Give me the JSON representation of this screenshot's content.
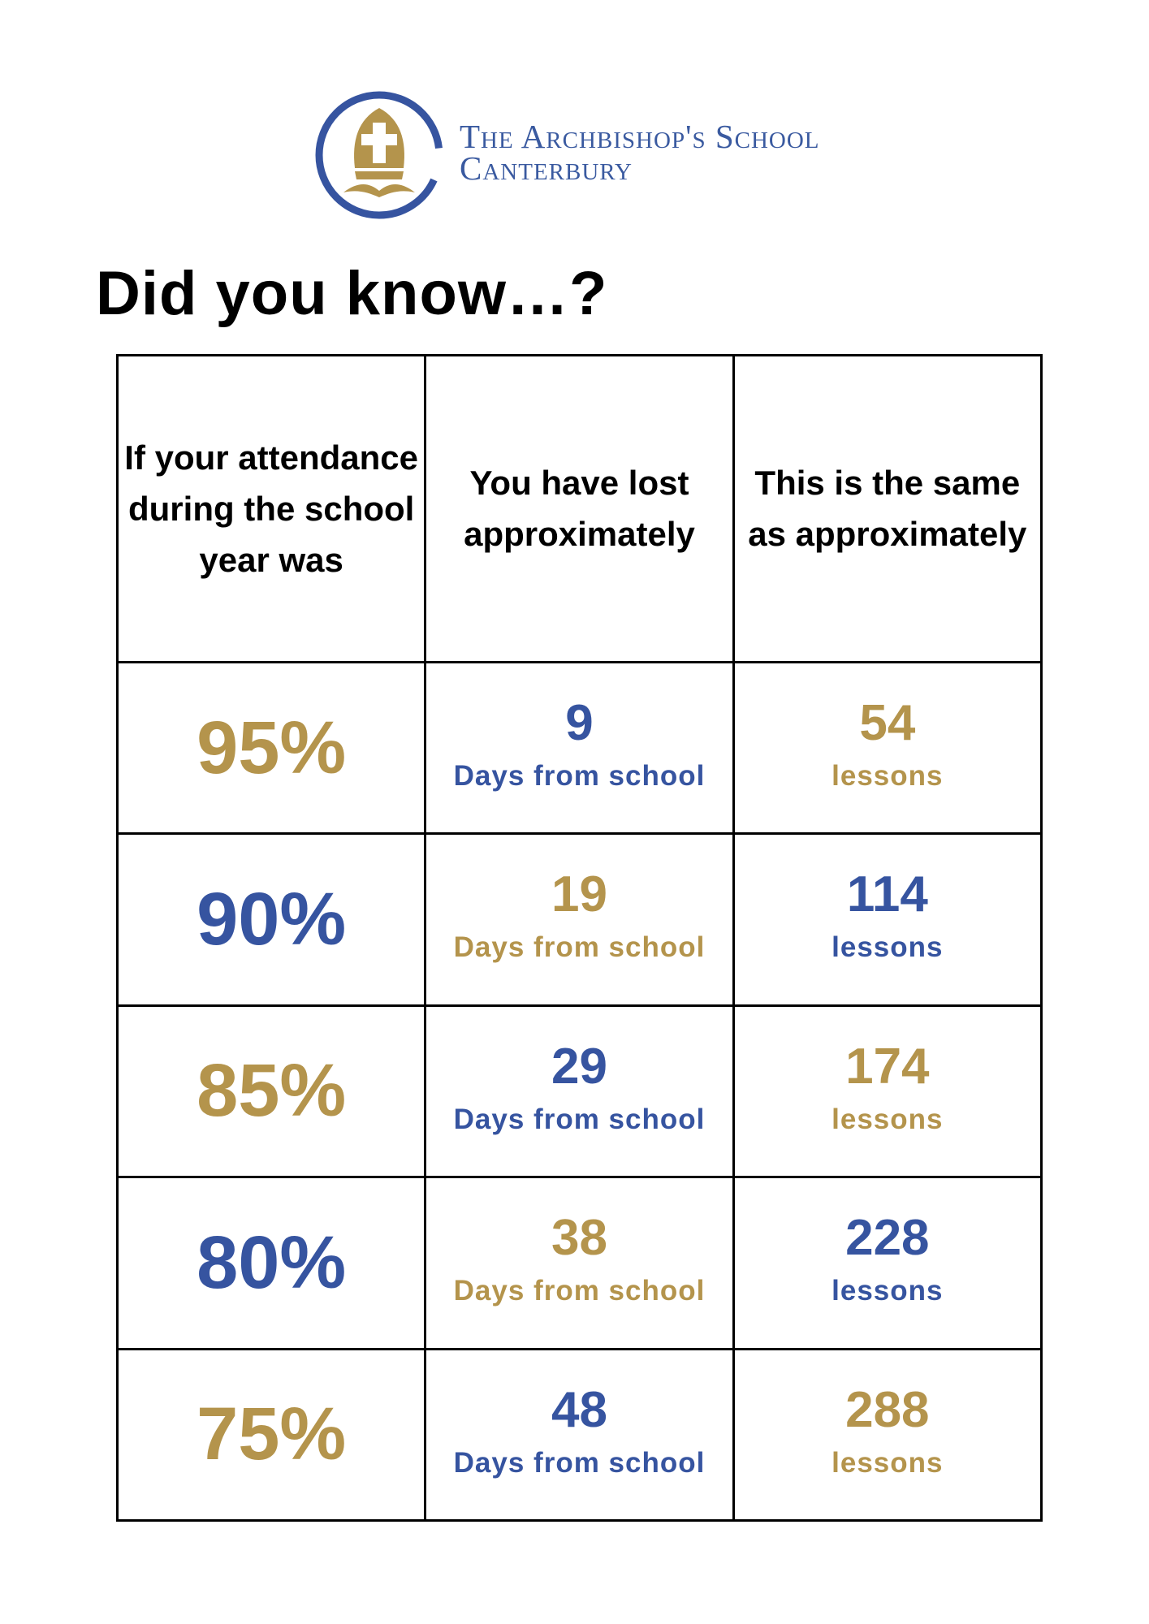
{
  "school": {
    "name_line1": "The Archbishop's School",
    "name_line2": "Canterbury",
    "brand_colors": {
      "blue": "#3654a0",
      "gold": "#b4944c"
    },
    "crest_icon": "mitre-cross-crest-icon"
  },
  "heading": "Did you know…?",
  "table": {
    "headers": [
      "If your attendance during the school year was",
      "You have lost approximately",
      "This is the same as approximately"
    ],
    "rows": [
      {
        "attendance": "95%",
        "days": "9",
        "days_unit": "Days from school",
        "lessons": "54",
        "lessons_unit": "lessons"
      },
      {
        "attendance": "90%",
        "days": "19",
        "days_unit": "Days from school",
        "lessons": "114",
        "lessons_unit": "lessons"
      },
      {
        "attendance": "85%",
        "days": "29",
        "days_unit": "Days from school",
        "lessons": "174",
        "lessons_unit": "lessons"
      },
      {
        "attendance": "80%",
        "days": "38",
        "days_unit": "Days from school",
        "lessons": "228",
        "lessons_unit": "lessons"
      },
      {
        "attendance": "75%",
        "days": "48",
        "days_unit": "Days from school",
        "lessons": "288",
        "lessons_unit": "lessons"
      }
    ]
  }
}
